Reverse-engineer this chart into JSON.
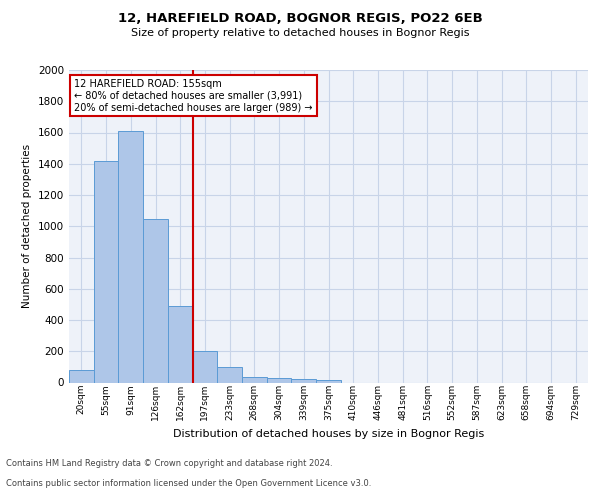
{
  "title1": "12, HAREFIELD ROAD, BOGNOR REGIS, PO22 6EB",
  "title2": "Size of property relative to detached houses in Bognor Regis",
  "xlabel": "Distribution of detached houses by size in Bognor Regis",
  "ylabel": "Number of detached properties",
  "annotation_line1": "12 HAREFIELD ROAD: 155sqm",
  "annotation_line2": "← 80% of detached houses are smaller (3,991)",
  "annotation_line3": "20% of semi-detached houses are larger (989) →",
  "footnote1": "Contains HM Land Registry data © Crown copyright and database right 2024.",
  "footnote2": "Contains public sector information licensed under the Open Government Licence v3.0.",
  "categories": [
    "20sqm",
    "55sqm",
    "91sqm",
    "126sqm",
    "162sqm",
    "197sqm",
    "233sqm",
    "268sqm",
    "304sqm",
    "339sqm",
    "375sqm",
    "410sqm",
    "446sqm",
    "481sqm",
    "516sqm",
    "552sqm",
    "587sqm",
    "623sqm",
    "658sqm",
    "694sqm",
    "729sqm"
  ],
  "values": [
    80,
    1420,
    1610,
    1045,
    490,
    200,
    100,
    38,
    27,
    20,
    15,
    0,
    0,
    0,
    0,
    0,
    0,
    0,
    0,
    0,
    0
  ],
  "bar_color": "#aec6e8",
  "bar_edge_color": "#5b9bd5",
  "red_line_x": 4.5,
  "ylim": [
    0,
    2000
  ],
  "yticks": [
    0,
    200,
    400,
    600,
    800,
    1000,
    1200,
    1400,
    1600,
    1800,
    2000
  ],
  "background_color": "#eef2f9",
  "annotation_box_color": "#ffffff",
  "annotation_box_edge": "#cc0000",
  "red_line_color": "#cc0000",
  "grid_color": "#c8d4e8"
}
